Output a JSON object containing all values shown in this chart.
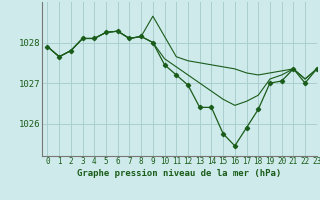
{
  "title": "Graphe pression niveau de la mer (hPa)",
  "bg_color": "#ceeaea",
  "grid_color": "#aacfcf",
  "line_color": "#1a5c1a",
  "xlim": [
    -0.5,
    23
  ],
  "ylim": [
    1025.2,
    1029.0
  ],
  "yticks": [
    1026,
    1027,
    1028
  ],
  "xticks": [
    0,
    1,
    2,
    3,
    4,
    5,
    6,
    7,
    8,
    9,
    10,
    11,
    12,
    13,
    14,
    15,
    16,
    17,
    18,
    19,
    20,
    21,
    22,
    23
  ],
  "series": [
    [
      1027.9,
      1027.65,
      1027.8,
      1028.1,
      1028.1,
      1028.25,
      1028.28,
      1028.1,
      1028.15,
      1028.65,
      1028.15,
      1027.65,
      1027.55,
      1027.5,
      1027.45,
      1027.4,
      1027.35,
      1027.25,
      1027.2,
      1027.25,
      1027.3,
      1027.35,
      1027.1,
      1027.35
    ],
    [
      1027.9,
      1027.65,
      1027.8,
      1028.1,
      1028.1,
      1028.25,
      1028.28,
      1028.1,
      1028.15,
      1028.0,
      1027.6,
      1027.4,
      1027.2,
      1027.0,
      1026.8,
      1026.6,
      1026.45,
      1026.55,
      1026.7,
      1027.1,
      1027.2,
      1027.35,
      1027.1,
      1027.35
    ],
    [
      1027.9,
      1027.65,
      1027.8,
      1028.1,
      1028.1,
      1028.25,
      1028.28,
      1028.1,
      1028.15,
      1028.0,
      1027.45,
      1027.2,
      1026.95,
      1026.4,
      1026.4,
      1025.75,
      1025.45,
      1025.9,
      1026.35,
      1027.0,
      1027.05,
      1027.35,
      1027.0,
      1027.35
    ]
  ],
  "marker_series_idx": 2,
  "figsize": [
    3.2,
    2.0
  ],
  "dpi": 100
}
